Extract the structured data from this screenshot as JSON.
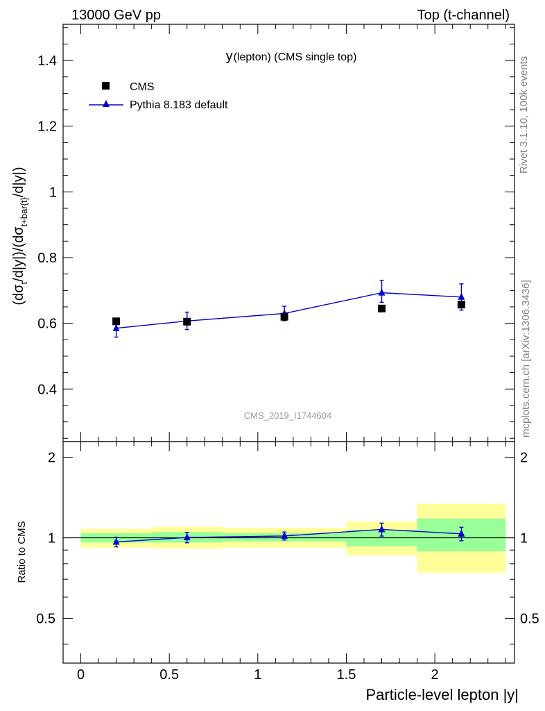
{
  "header": {
    "left": "13000 GeV pp",
    "right": "Top (t-channel)"
  },
  "side_labels": {
    "rivet": "Rivet 3.1.10,  100k events",
    "mcplots": "mcplots.cern.ch [arXiv:1306.3436]"
  },
  "watermark": "CMS_2019_I1744604",
  "main_title": {
    "prefix": "y",
    "rest": "(lepton) (CMS single top)"
  },
  "colors": {
    "data": "#000000",
    "mc": "#0000cc",
    "band_inner": "#99ff99",
    "band_outer": "#ffff99"
  },
  "chart_data": [
    {
      "type": "scatter",
      "panel": "main",
      "title": "y(lepton) (CMS single top)",
      "ylabel": {
        "text1": "(dσ",
        "sub1": "t",
        "text2": "/d|y|)/(dσ",
        "sub2": "t+bar{t}",
        "text3": "/d|y|)"
      },
      "xlim": [
        -0.1,
        2.45
      ],
      "ylim": [
        0.24,
        1.51
      ],
      "yticks": [
        0.4,
        0.6,
        0.8,
        1.0,
        1.2,
        1.4
      ],
      "ytick_labels": [
        "0.4",
        "0.6",
        "0.8",
        "1",
        "1.2",
        "1.4"
      ],
      "legend": {
        "placement": "top-left",
        "data_label": "CMS",
        "mc_label": "Pythia 8.183 default"
      },
      "data": {
        "name": "CMS",
        "x": [
          0.2,
          0.6,
          1.15,
          1.7,
          2.15
        ],
        "y": [
          0.606,
          0.605,
          0.62,
          0.645,
          0.657
        ],
        "yerr": [
          0.003,
          0.004,
          0.005,
          0.005,
          0.006
        ],
        "xbins": [
          [
            0.0,
            0.4
          ],
          [
            0.4,
            0.8
          ],
          [
            0.8,
            1.5
          ],
          [
            1.5,
            1.9
          ],
          [
            1.9,
            2.4
          ]
        ]
      },
      "mc": {
        "name": "Pythia 8.183 default",
        "x": [
          0.2,
          0.6,
          1.15,
          1.7,
          2.15
        ],
        "y": [
          0.585,
          0.607,
          0.63,
          0.693,
          0.68
        ],
        "yerr_up": [
          0.015,
          0.027,
          0.022,
          0.038,
          0.04
        ],
        "yerr_down": [
          0.027,
          0.026,
          0.022,
          0.029,
          0.04
        ]
      }
    },
    {
      "type": "scatter",
      "panel": "ratio",
      "ylabel": "Ratio to CMS",
      "xlabel": "Particle-level lepton |y|",
      "xlim": [
        -0.1,
        2.45
      ],
      "ylim": [
        0.34,
        2.29
      ],
      "ylog": true,
      "yticks": [
        0.5,
        1,
        2
      ],
      "ytick_labels": [
        "0.5",
        "1",
        "2"
      ],
      "xticks": [
        0,
        0.5,
        1,
        1.5,
        2
      ],
      "xtick_labels": [
        "0",
        "0.5",
        "1",
        "1.5",
        "2"
      ],
      "bands": {
        "xbins": [
          [
            0.0,
            0.4
          ],
          [
            0.4,
            0.8
          ],
          [
            0.8,
            1.5
          ],
          [
            1.5,
            1.9
          ],
          [
            1.9,
            2.4
          ]
        ],
        "inner": [
          [
            0.96,
            1.04
          ],
          [
            0.96,
            1.05
          ],
          [
            0.97,
            1.04
          ],
          [
            0.93,
            1.07
          ],
          [
            0.89,
            1.18
          ]
        ],
        "outer": [
          [
            0.92,
            1.08
          ],
          [
            0.91,
            1.1
          ],
          [
            0.92,
            1.09
          ],
          [
            0.86,
            1.15
          ],
          [
            0.74,
            1.34
          ]
        ]
      },
      "mc": {
        "x": [
          0.2,
          0.6,
          1.15,
          1.7,
          2.15
        ],
        "y": [
          0.965,
          1.003,
          1.016,
          1.075,
          1.035
        ],
        "yerr_up": [
          0.04,
          0.045,
          0.035,
          0.06,
          0.06
        ],
        "yerr_down": [
          0.04,
          0.045,
          0.035,
          0.06,
          0.06
        ]
      }
    }
  ]
}
